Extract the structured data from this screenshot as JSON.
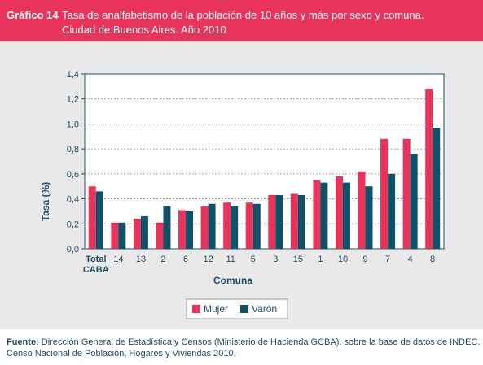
{
  "header": {
    "figure_label": "Gráfico 14",
    "title": "Tasa de analfabetismo de la población de 10 años y más por sexo y comuna.",
    "subtitle": "Ciudad de Buenos Aires. Año 2010"
  },
  "footer": {
    "source_label": "Fuente:",
    "source_text": "Dirección General de Estadística y Censos (Ministerio de Hacienda GCBA). sobre la base de datos de INDEC.",
    "source_text_2": "Censo Nacional de Población, Hogares y Viviendas 2010."
  },
  "colors": {
    "header_bg": "#e8335a",
    "mujer": "#e8335a",
    "varon": "#0e5168",
    "axis_text": "#1f4f66"
  },
  "chart_data": {
    "type": "bar",
    "xlabel": "Comuna",
    "ylabel": "Tasa (%)",
    "ylim": [
      0,
      1.4
    ],
    "yticks": [
      "0,0",
      "0,2",
      "0,4",
      "0,6",
      "0,8",
      "1,0",
      "1,2",
      "1,4"
    ],
    "grid": true,
    "legend": "bottom-center",
    "categories": [
      [
        "Total",
        "CABA"
      ],
      [
        "14"
      ],
      [
        "13"
      ],
      [
        "2"
      ],
      [
        "6"
      ],
      [
        "12"
      ],
      [
        "11"
      ],
      [
        "5"
      ],
      [
        "3"
      ],
      [
        "15"
      ],
      [
        "1"
      ],
      [
        "10"
      ],
      [
        "9"
      ],
      [
        "7"
      ],
      [
        "4"
      ],
      [
        "8"
      ]
    ],
    "series": [
      {
        "name": "Mujer",
        "color": "#e8335a",
        "values": [
          0.5,
          0.21,
          0.24,
          0.21,
          0.31,
          0.34,
          0.37,
          0.37,
          0.43,
          0.44,
          0.55,
          0.58,
          0.62,
          0.88,
          0.88,
          1.28
        ]
      },
      {
        "name": "Varón",
        "color": "#0e5168",
        "values": [
          0.46,
          0.21,
          0.26,
          0.34,
          0.3,
          0.36,
          0.34,
          0.36,
          0.43,
          0.43,
          0.53,
          0.53,
          0.5,
          0.6,
          0.76,
          0.97
        ]
      }
    ]
  }
}
